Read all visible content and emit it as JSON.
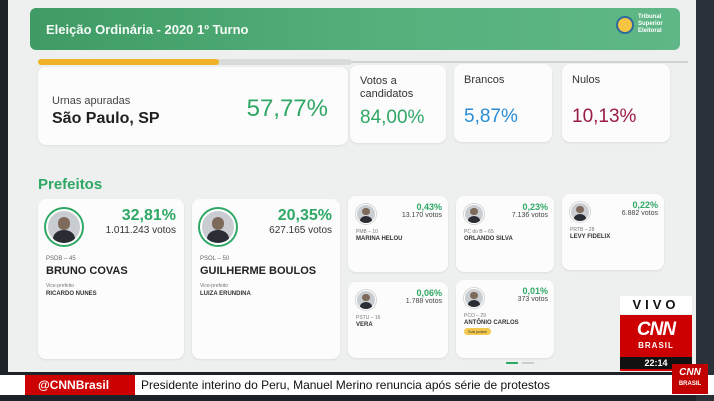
{
  "header": {
    "title": "Eleição Ordinária - 2020 1º Turno",
    "logo_text": "Tribunal Superior Eleitoral",
    "logo_icon": "tse-seal-icon"
  },
  "progress": {
    "percent": 57.77,
    "color": "#f0b227"
  },
  "summary": {
    "label": "Urnas apuradas",
    "city": "São Paulo, SP",
    "percent": "57,77%"
  },
  "stats": [
    {
      "label": "Votos a candidatos",
      "value": "84,00%",
      "color": "#2fa765"
    },
    {
      "label": "Brancos",
      "value": "5,87%",
      "color": "#2a8bd6"
    },
    {
      "label": "Nulos",
      "value": "10,13%",
      "color": "#9b1b47"
    }
  ],
  "section_title": "Prefeitos",
  "leaders": [
    {
      "percent": "32,81%",
      "votes": "1.011.243 votos",
      "party": "PSDB – 45",
      "name": "BRUNO COVAS",
      "vice_label": "Vice-prefeito",
      "vice": "RICARDO NUNES"
    },
    {
      "percent": "20,35%",
      "votes": "627.165 votos",
      "party": "PSOL – 50",
      "name": "GUILHERME BOULOS",
      "vice_label": "Vice-prefeito",
      "vice": "LUIZA ERUNDINA"
    }
  ],
  "others": [
    {
      "percent": "0,43%",
      "votes": "13.170 votos",
      "party": "PMB – 10",
      "name": "MARINA HELOU",
      "note": ""
    },
    {
      "percent": "0,23%",
      "votes": "7.136 votos",
      "party": "PC do B – 65",
      "name": "ORLANDO SILVA",
      "note": ""
    },
    {
      "percent": "0,22%",
      "votes": "6.882 votos",
      "party": "PRTB – 28",
      "name": "LEVY FIDELIX",
      "note": ""
    },
    {
      "percent": "0,06%",
      "votes": "1.788 votos",
      "party": "PSTU – 16",
      "name": "VERA",
      "note": ""
    },
    {
      "percent": "0,01%",
      "votes": "373 votos",
      "party": "PCO – 29",
      "name": "ANTÔNIO CARLOS",
      "note": "Sub judice"
    }
  ],
  "overlay": {
    "live": "VIVO",
    "logo": "CNN",
    "brand": "BRASIL",
    "time": "22:14",
    "ticker_handle": "@CNNBrasil",
    "ticker_text": "Presidente interino do Peru, Manuel Merino renuncia após série de protestos",
    "corner_logo": "CNN",
    "corner_brand": "BRASIL"
  }
}
